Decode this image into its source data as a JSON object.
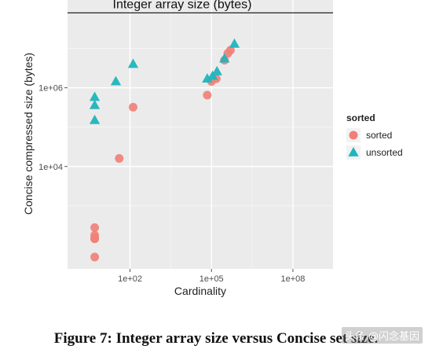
{
  "caption": "Figure 7: Integer array size versus Concise set size.",
  "watermark": "头条 @闪念基因",
  "colors": {
    "panel": "#ebebeb",
    "grid": "#ffffff",
    "sorted": "#f07f78",
    "unsorted": "#1fb5bc",
    "hline": "#222222"
  },
  "chart_data": {
    "type": "scatter",
    "title": "",
    "xlabel": "Cardinality",
    "ylabel": "Concise compressed size (bytes)",
    "x_scale": "log10",
    "y_scale": "log10",
    "xlim": [
      0.5,
      3000000000
    ],
    "ylim": [
      25,
      170000000
    ],
    "x_ticks": [
      {
        "value": 100,
        "label": "1e+02"
      },
      {
        "value": 100000,
        "label": "1e+05"
      },
      {
        "value": 100000000,
        "label": "1e+08"
      }
    ],
    "y_ticks": [
      {
        "value": 10000,
        "label": "1e+04"
      },
      {
        "value": 1000000,
        "label": "1e+06"
      }
    ],
    "reference_line": {
      "y": 80000000,
      "label": "Integer array size (bytes)"
    },
    "legend": {
      "title": "sorted",
      "position": "right",
      "entries": [
        {
          "name": "sorted",
          "shape": "circle"
        },
        {
          "name": "unsorted",
          "shape": "triangle"
        }
      ]
    },
    "series": [
      {
        "name": "sorted",
        "shape": "circle",
        "points": [
          {
            "x": 5,
            "y": 50
          },
          {
            "x": 5,
            "y": 145
          },
          {
            "x": 5,
            "y": 150
          },
          {
            "x": 5,
            "y": 180
          },
          {
            "x": 5,
            "y": 280
          },
          {
            "x": 40,
            "y": 16000
          },
          {
            "x": 130,
            "y": 320000
          },
          {
            "x": 70000,
            "y": 650000
          },
          {
            "x": 100000,
            "y": 1450000
          },
          {
            "x": 150000,
            "y": 1700000
          },
          {
            "x": 300000,
            "y": 5000000
          },
          {
            "x": 400000,
            "y": 7500000
          },
          {
            "x": 500000,
            "y": 9000000
          }
        ]
      },
      {
        "name": "unsorted",
        "shape": "triangle",
        "points": [
          {
            "x": 5,
            "y": 150000
          },
          {
            "x": 5,
            "y": 360000
          },
          {
            "x": 5,
            "y": 580000
          },
          {
            "x": 30,
            "y": 1450000
          },
          {
            "x": 130,
            "y": 4000000
          },
          {
            "x": 70000,
            "y": 1700000
          },
          {
            "x": 110000,
            "y": 2000000
          },
          {
            "x": 160000,
            "y": 2600000
          },
          {
            "x": 300000,
            "y": 5500000
          },
          {
            "x": 700000,
            "y": 13000000
          }
        ]
      }
    ]
  }
}
